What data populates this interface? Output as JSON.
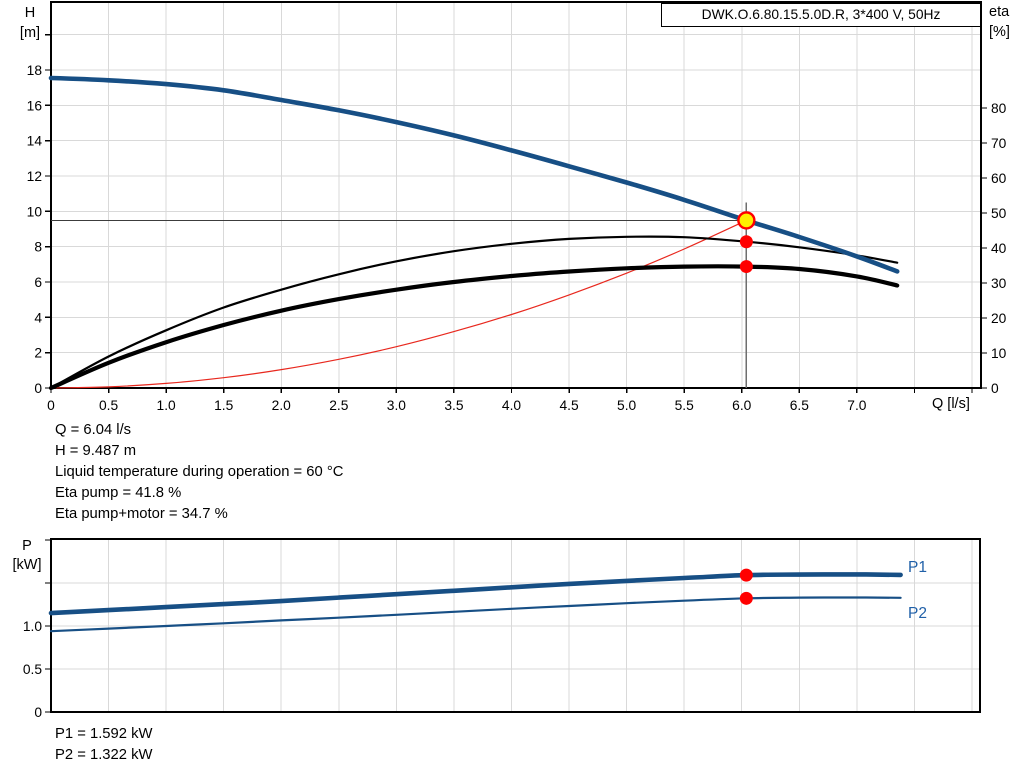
{
  "colors": {
    "curve_blue": "#174F85",
    "curve_black": "#000000",
    "curve_red": "#E8281E",
    "marker_red": "#FF0000",
    "marker_yellow": "#FFF000",
    "label_blue": "#2060A8",
    "grid": "#D9D9D9",
    "axis": "#000000",
    "op_vline": "#6E6E6E",
    "op_hline": "#3C3C3C"
  },
  "duty_readout": {
    "lines": [
      "Q = 6.04 l/s",
      "H = 9.487 m",
      "Liquid temperature during operation = 60 °C",
      "Eta pump = 41.8 %",
      "Eta pump+motor = 34.7 %"
    ]
  },
  "power_readout": {
    "lines": [
      "P1 = 1.592 kW",
      "P2 = 1.322 kW"
    ]
  },
  "chart_data": [
    {
      "type": "line",
      "title": "DWK.O.6.80.15.5.0D.R, 3*400 V, 50Hz",
      "axis_labels": {
        "left": [
          "H",
          "[m]"
        ],
        "right": [
          "eta",
          "[%]"
        ],
        "x": "Q [l/s]"
      },
      "xlim": [
        0,
        8.078
      ],
      "ylim_left": [
        0,
        21.85
      ],
      "ylim_right": [
        0,
        110.3
      ],
      "grid": true,
      "x_ticks": [
        {
          "v": 0,
          "t": "0"
        },
        {
          "v": 0.5,
          "t": "0.5"
        },
        {
          "v": 1,
          "t": "1.0"
        },
        {
          "v": 1.5,
          "t": "1.5"
        },
        {
          "v": 2,
          "t": "2.0"
        },
        {
          "v": 2.5,
          "t": "2.5"
        },
        {
          "v": 3,
          "t": "3.0"
        },
        {
          "v": 3.5,
          "t": "3.5"
        },
        {
          "v": 4,
          "t": "4.0"
        },
        {
          "v": 4.5,
          "t": "4.5"
        },
        {
          "v": 5,
          "t": "5.0"
        },
        {
          "v": 5.5,
          "t": "5.5"
        },
        {
          "v": 6,
          "t": "6.0"
        },
        {
          "v": 6.5,
          "t": "6.5"
        },
        {
          "v": 7,
          "t": "7.0"
        },
        {
          "v": 7.5,
          "t": ""
        },
        {
          "v": 8,
          "t": ""
        }
      ],
      "y_ticks_left": [
        {
          "v": 0,
          "t": "0"
        },
        {
          "v": 2,
          "t": "2"
        },
        {
          "v": 4,
          "t": "4"
        },
        {
          "v": 6,
          "t": "6"
        },
        {
          "v": 8,
          "t": "8"
        },
        {
          "v": 10,
          "t": "10"
        },
        {
          "v": 12,
          "t": "12"
        },
        {
          "v": 14,
          "t": "14"
        },
        {
          "v": 16,
          "t": "16"
        },
        {
          "v": 18,
          "t": "18"
        },
        {
          "v": 20,
          "t": ""
        }
      ],
      "y_ticks_right": [
        {
          "v": 0,
          "t": "0"
        },
        {
          "v": 10,
          "t": "10"
        },
        {
          "v": 20,
          "t": "20"
        },
        {
          "v": 30,
          "t": "30"
        },
        {
          "v": 40,
          "t": "40"
        },
        {
          "v": 50,
          "t": "50"
        },
        {
          "v": 60,
          "t": "60"
        },
        {
          "v": 70,
          "t": "70"
        },
        {
          "v": 80,
          "t": "80"
        }
      ],
      "series": [
        {
          "name": "system-curve",
          "axis": "left",
          "color": "curve_red",
          "width": 1.2,
          "points": [
            [
              0,
              0
            ],
            [
              0.5,
              0.065
            ],
            [
              1,
              0.26
            ],
            [
              1.5,
              0.585
            ],
            [
              2,
              1.04
            ],
            [
              2.5,
              1.625
            ],
            [
              3,
              2.34
            ],
            [
              3.5,
              3.19
            ],
            [
              4,
              4.16
            ],
            [
              4.5,
              5.27
            ],
            [
              5,
              6.5
            ],
            [
              5.5,
              7.87
            ],
            [
              6.04,
              9.487
            ]
          ]
        },
        {
          "name": "eta-pump",
          "axis": "right",
          "color": "curve_black",
          "width": 2.2,
          "points": [
            [
              0,
              0
            ],
            [
              0.5,
              9
            ],
            [
              1,
              16.5
            ],
            [
              1.5,
              23
            ],
            [
              2,
              28.1
            ],
            [
              2.5,
              32.5
            ],
            [
              3,
              36.2
            ],
            [
              3.5,
              39.1
            ],
            [
              4,
              41.2
            ],
            [
              4.5,
              42.6
            ],
            [
              5,
              43.2
            ],
            [
              5.5,
              43.1
            ],
            [
              6.04,
              41.8
            ],
            [
              6.5,
              40.2
            ],
            [
              7,
              37.9
            ],
            [
              7.35,
              35.8
            ]
          ]
        },
        {
          "name": "eta-pump-motor",
          "axis": "right",
          "color": "curve_black",
          "width": 4.2,
          "points": [
            [
              0,
              0
            ],
            [
              0.5,
              7.2
            ],
            [
              1,
              13.1
            ],
            [
              1.5,
              18
            ],
            [
              2,
              22.1
            ],
            [
              2.5,
              25.4
            ],
            [
              3,
              28.1
            ],
            [
              3.5,
              30.3
            ],
            [
              4,
              32
            ],
            [
              4.5,
              33.3
            ],
            [
              5,
              34.2
            ],
            [
              5.5,
              34.7
            ],
            [
              6.04,
              34.7
            ],
            [
              6.5,
              34
            ],
            [
              7,
              31.9
            ],
            [
              7.35,
              29.3
            ]
          ]
        },
        {
          "name": "qh-curve",
          "axis": "left",
          "color": "curve_blue",
          "width": 4.6,
          "points": [
            [
              0,
              17.55
            ],
            [
              0.5,
              17.42
            ],
            [
              1,
              17.2
            ],
            [
              1.5,
              16.85
            ],
            [
              2,
              16.3
            ],
            [
              2.5,
              15.72
            ],
            [
              3,
              15.05
            ],
            [
              3.5,
              14.3
            ],
            [
              4,
              13.45
            ],
            [
              4.5,
              12.55
            ],
            [
              5,
              11.63
            ],
            [
              5.5,
              10.65
            ],
            [
              6.04,
              9.487
            ],
            [
              6.5,
              8.55
            ],
            [
              7,
              7.45
            ],
            [
              7.35,
              6.6
            ]
          ]
        }
      ],
      "operating_point": {
        "q": 6.04,
        "h": 9.487,
        "eta_pump": 41.8,
        "eta_pump_motor": 34.7
      }
    },
    {
      "type": "line",
      "axis_labels": {
        "left": [
          "P",
          "[kW]"
        ]
      },
      "xlim": [
        0,
        8.07
      ],
      "ylim": [
        0,
        2.012
      ],
      "grid": true,
      "y_ticks": [
        {
          "v": 0,
          "t": "0"
        },
        {
          "v": 0.5,
          "t": "0.5"
        },
        {
          "v": 1,
          "t": "1.0"
        },
        {
          "v": 1.5,
          "t": ""
        },
        {
          "v": 2,
          "t": ""
        }
      ],
      "series": [
        {
          "name": "P2",
          "color": "curve_blue",
          "width": 2.2,
          "points": [
            [
              0,
              0.94
            ],
            [
              0.5,
              0.97
            ],
            [
              1,
              1.0
            ],
            [
              1.5,
              1.032
            ],
            [
              2,
              1.065
            ],
            [
              2.5,
              1.097
            ],
            [
              3,
              1.13
            ],
            [
              3.5,
              1.165
            ],
            [
              4,
              1.2
            ],
            [
              4.5,
              1.233
            ],
            [
              5,
              1.265
            ],
            [
              5.5,
              1.295
            ],
            [
              6.04,
              1.322
            ],
            [
              6.5,
              1.33
            ],
            [
              7,
              1.332
            ],
            [
              7.38,
              1.328
            ]
          ]
        },
        {
          "name": "P1",
          "color": "curve_blue",
          "width": 4.6,
          "points": [
            [
              0,
              1.15
            ],
            [
              0.5,
              1.185
            ],
            [
              1,
              1.22
            ],
            [
              1.5,
              1.255
            ],
            [
              2,
              1.29
            ],
            [
              2.5,
              1.33
            ],
            [
              3,
              1.37
            ],
            [
              3.5,
              1.41
            ],
            [
              4,
              1.45
            ],
            [
              4.5,
              1.49
            ],
            [
              5,
              1.525
            ],
            [
              5.5,
              1.558
            ],
            [
              6.04,
              1.592
            ],
            [
              6.5,
              1.598
            ],
            [
              7,
              1.6
            ],
            [
              7.38,
              1.595
            ]
          ]
        }
      ],
      "markers": [
        {
          "q": 6.04,
          "p": 1.592
        },
        {
          "q": 6.04,
          "p": 1.322
        }
      ]
    }
  ]
}
